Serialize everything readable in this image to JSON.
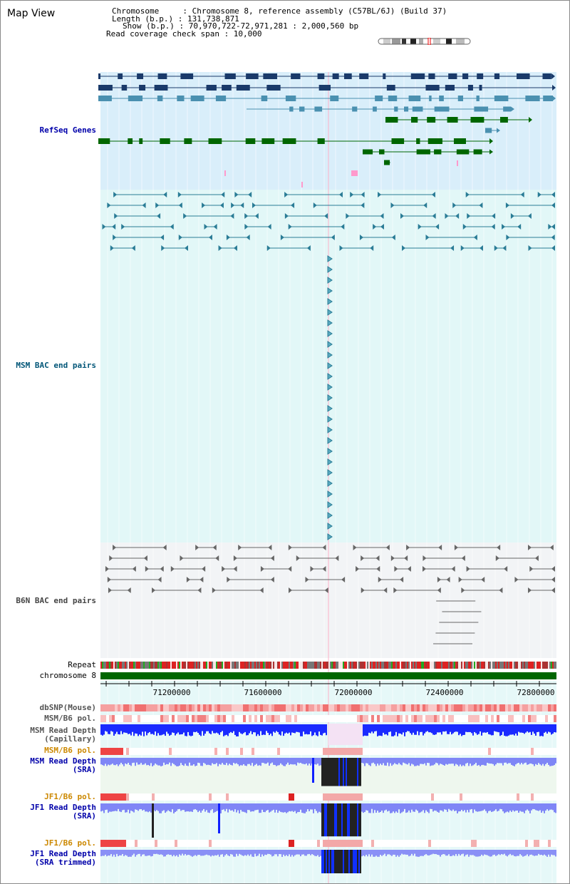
{
  "view": {
    "title": "Map View",
    "info": {
      "chromosome": "Chromosome     : Chromosome 8, reference assembly (C57BL/6J) (Build 37)",
      "length": "Length (b.p.) : 131,738,871",
      "show": "Show (b.p.) : 70,970,722-72,971,281 : 2,000,560 bp",
      "span": "Read coverage check span : 10,000"
    }
  },
  "tracks": {
    "refseq": "RefSeq Genes",
    "msm_bac": "MSM BAC end pairs",
    "b6n_bac": "B6N BAC end pairs",
    "repeat": "Repeat",
    "chromosome": "chromosome 8",
    "dbsnp": "dbSNP(Mouse)",
    "msm_b6_pol_1": "MSM/B6 pol.",
    "msm_depth_cap_1": "MSM Read Depth",
    "msm_depth_cap_2": "(Capillary)",
    "msm_b6_pol_2": "MSM/B6 pol.",
    "msm_depth_sra_1": "MSM Read Depth",
    "msm_depth_sra_2": "(SRA)",
    "jf1_b6_pol_1": "JF1/B6 pol.",
    "jf1_depth_sra_1": "JF1 Read Depth",
    "jf1_depth_sra_2": "(SRA)",
    "jf1_b6_pol_2": "JF1/B6 pol.",
    "jf1_depth_trim_1": "JF1 Read Depth",
    "jf1_depth_trim_2": "(SRA trimmed)"
  },
  "ruler": {
    "ticks": [
      "71200000",
      "71600000",
      "72000000",
      "72400000",
      "72800000"
    ]
  },
  "colors": {
    "refseq_label": "#0000aa",
    "msm_label": "#005577",
    "b6n_label": "#444444",
    "pol_label": "#cc8800",
    "depth_label": "#0000aa",
    "navy": "#1a3a6a",
    "teal": "#4a90b0",
    "green": "#006600",
    "pink": "#ff99cc"
  }
}
